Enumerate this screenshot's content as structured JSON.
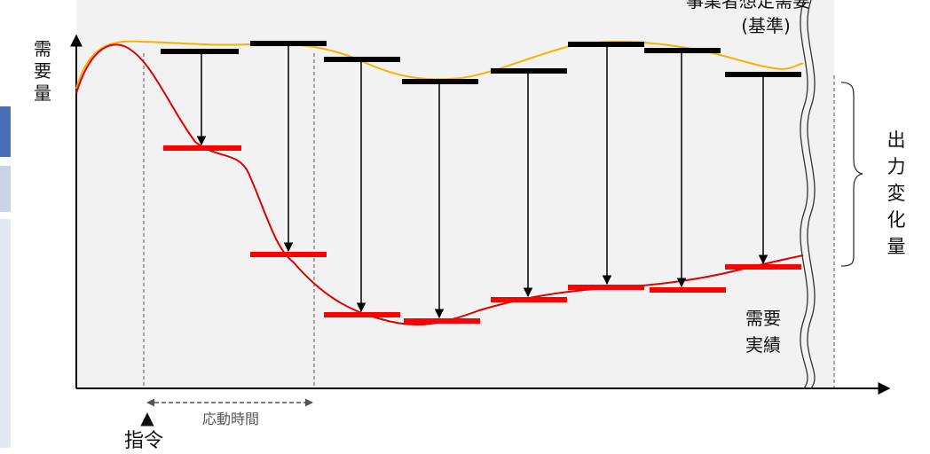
{
  "labels": {
    "y_axis": "需要量",
    "baseline_top": "事業者想定需要",
    "baseline_bottom": "(基準)",
    "output_change": "出力変化量",
    "actual_demand_1": "需要",
    "actual_demand_2": "実績",
    "response_time": "応動時間",
    "command_mark": "▲",
    "command": "指令"
  },
  "colors": {
    "background_region": "#f2f2f2",
    "baseline_curve": "#f5b301",
    "actual_curve": "#e00000",
    "baseline_bar": "#000000",
    "actual_bar": "#ff0000",
    "arrow": "#000000",
    "dashed": "#555555"
  },
  "icons": {
    "axis": "arrow-right-icon",
    "command": "triangle-up-icon",
    "brace": "curly-brace-icon",
    "break": "wavy-break-icon"
  }
}
